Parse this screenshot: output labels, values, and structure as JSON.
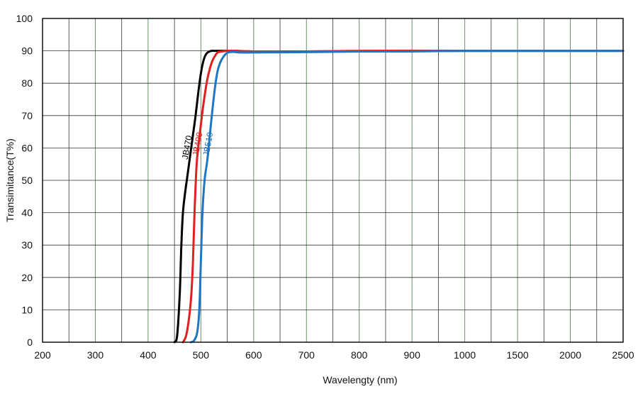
{
  "chart_data": {
    "type": "line",
    "title": "",
    "xlabel": "Wavelengty (nm)",
    "ylabel": "Transimitance(T%)",
    "x_scale": "piecewise",
    "x_tick_labels": [
      "200",
      "300",
      "400",
      "500",
      "600",
      "700",
      "800",
      "900",
      "1000",
      "1500",
      "2000",
      "2500"
    ],
    "x_ticks": [
      200,
      300,
      400,
      500,
      600,
      700,
      800,
      900,
      1000,
      1500,
      2000,
      2500
    ],
    "y_tick_labels": [
      "0",
      "10",
      "20",
      "30",
      "40",
      "50",
      "60",
      "70",
      "80",
      "90",
      "100"
    ],
    "ylim": [
      0,
      100
    ],
    "grid": true,
    "legend": "inline labels on curves",
    "series": [
      {
        "name": "JB470",
        "color": "#000000",
        "x": [
          450,
          455,
          460,
          463,
          466,
          470,
          475,
          480,
          485,
          490,
          495,
          500,
          505,
          510,
          515,
          520,
          525,
          530,
          540,
          560,
          600,
          700,
          800,
          900,
          1000,
          1500,
          2000,
          2500
        ],
        "y": [
          0,
          2,
          15,
          30,
          40,
          46,
          52,
          58,
          64,
          70,
          77,
          83,
          87,
          89,
          89.7,
          90,
          90,
          90,
          90,
          90,
          89.8,
          89.8,
          89.9,
          90,
          90,
          90,
          90,
          90
        ]
      },
      {
        "name": "JB490",
        "color": "#e02020",
        "x": [
          466,
          472,
          478,
          482,
          485,
          488,
          492,
          497,
          502,
          507,
          512,
          517,
          522,
          527,
          532,
          540,
          550,
          570,
          600,
          700,
          800,
          900,
          1000,
          1500,
          2000,
          2500
        ],
        "y": [
          0,
          2,
          8,
          15,
          25,
          40,
          55,
          63,
          70,
          76,
          81,
          84.5,
          87,
          88.5,
          89.5,
          89.8,
          90,
          90,
          89.8,
          89.8,
          90,
          90,
          90,
          90,
          90,
          90
        ]
      },
      {
        "name": "JB510",
        "color": "#1f77c4",
        "x": [
          481,
          487,
          493,
          497,
          500,
          503,
          507,
          512,
          517,
          522,
          527,
          532,
          537,
          542,
          547,
          552,
          560,
          575,
          600,
          700,
          800,
          900,
          1000,
          1500,
          2000,
          2500
        ],
        "y": [
          0,
          0.5,
          3,
          10,
          25,
          40,
          50,
          56,
          64,
          72,
          79,
          84,
          86.5,
          88,
          89,
          89.5,
          89.7,
          89.5,
          89.5,
          89.6,
          89.8,
          89.8,
          90,
          90,
          90,
          90
        ]
      }
    ]
  }
}
